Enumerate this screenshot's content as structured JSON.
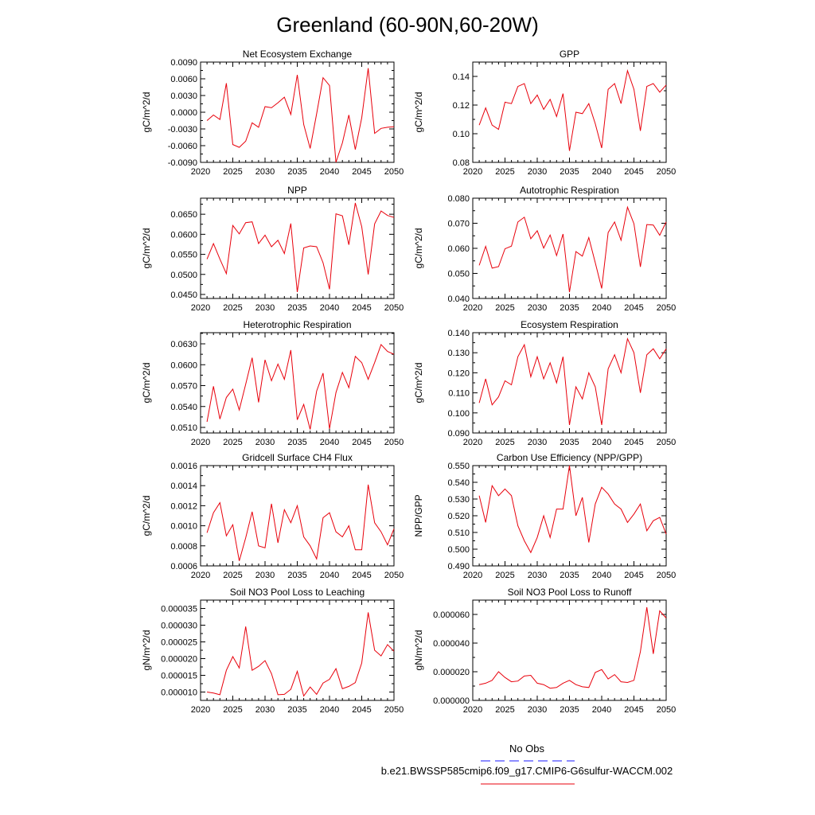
{
  "title": "Greenland (60-90N,60-20W)",
  "colors": {
    "series": "#e8000b",
    "obs": "#1a1aff",
    "axis": "#000000"
  },
  "legend": {
    "obs_label": "No Obs",
    "model_label": "b.e21.BWSSP585cmip6.f09_g17.CMIP6-G6sulfur-WACCM.002"
  },
  "chart_data": [
    {
      "type": "line",
      "title": "Net Ecosystem Exchange",
      "ylabel": "gC/m^2/d",
      "xlim": [
        2020,
        2050
      ],
      "xticks": [
        2020,
        2025,
        2030,
        2035,
        2040,
        2045,
        2050
      ],
      "ylim": [
        -0.009,
        0.009
      ],
      "yticks": [
        -0.009,
        -0.006,
        -0.003,
        0.0,
        0.003,
        0.006,
        0.009
      ],
      "ytick_labels": [
        "-0.0090",
        "-0.0060",
        "-0.0030",
        "0.0000",
        "0.0030",
        "0.0060",
        "0.0090"
      ],
      "x": [
        2021,
        2022,
        2023,
        2024,
        2025,
        2026,
        2027,
        2028,
        2029,
        2030,
        2031,
        2032,
        2033,
        2034,
        2035,
        2036,
        2037,
        2038,
        2039,
        2040,
        2041,
        2042,
        2043,
        2044,
        2045,
        2046,
        2047,
        2048,
        2049,
        2050
      ],
      "y": [
        -0.0015,
        -0.0005,
        -0.0013,
        0.0052,
        -0.0058,
        -0.0063,
        -0.0052,
        -0.0019,
        -0.0027,
        0.001,
        0.0008,
        0.0017,
        0.0027,
        -0.0004,
        0.0067,
        -0.0022,
        -0.0065,
        -0.0003,
        0.0062,
        0.0048,
        -0.009,
        -0.0055,
        -0.0005,
        -0.0067,
        -0.001,
        0.0079,
        -0.0038,
        -0.0029,
        -0.0027,
        -0.0026
      ]
    },
    {
      "type": "line",
      "title": "GPP",
      "ylabel": "gC/m^2/d",
      "xlim": [
        2020,
        2050
      ],
      "xticks": [
        2020,
        2025,
        2030,
        2035,
        2040,
        2045,
        2050
      ],
      "ylim": [
        0.08,
        0.15
      ],
      "yticks": [
        0.08,
        0.1,
        0.12,
        0.14
      ],
      "ytick_labels": [
        "0.08",
        "0.10",
        "0.12",
        "0.14"
      ],
      "x": [
        2021,
        2022,
        2023,
        2024,
        2025,
        2026,
        2027,
        2028,
        2029,
        2030,
        2031,
        2032,
        2033,
        2034,
        2035,
        2036,
        2037,
        2038,
        2039,
        2040,
        2041,
        2042,
        2043,
        2044,
        2045,
        2046,
        2047,
        2048,
        2049,
        2050
      ],
      "y": [
        0.106,
        0.118,
        0.106,
        0.103,
        0.122,
        0.121,
        0.133,
        0.135,
        0.121,
        0.127,
        0.117,
        0.124,
        0.112,
        0.128,
        0.088,
        0.115,
        0.114,
        0.121,
        0.107,
        0.09,
        0.131,
        0.135,
        0.121,
        0.144,
        0.131,
        0.102,
        0.133,
        0.135,
        0.129,
        0.134
      ]
    },
    {
      "type": "line",
      "title": "NPP",
      "ylabel": "gC/m^2/d",
      "xlim": [
        2020,
        2050
      ],
      "xticks": [
        2020,
        2025,
        2030,
        2035,
        2040,
        2045,
        2050
      ],
      "ylim": [
        0.044,
        0.069
      ],
      "yticks": [
        0.045,
        0.05,
        0.055,
        0.06,
        0.065
      ],
      "ytick_labels": [
        "0.0450",
        "0.0500",
        "0.0550",
        "0.0600",
        "0.0650"
      ],
      "x": [
        2021,
        2022,
        2023,
        2024,
        2025,
        2026,
        2027,
        2028,
        2029,
        2030,
        2031,
        2032,
        2033,
        2034,
        2035,
        2036,
        2037,
        2038,
        2039,
        2040,
        2041,
        2042,
        2043,
        2044,
        2045,
        2046,
        2047,
        2048,
        2049,
        2050
      ],
      "y": [
        0.0538,
        0.0577,
        0.0538,
        0.0502,
        0.0622,
        0.0601,
        0.0629,
        0.0631,
        0.0577,
        0.0598,
        0.0569,
        0.0585,
        0.0552,
        0.0627,
        0.0456,
        0.0566,
        0.0571,
        0.0569,
        0.0529,
        0.0463,
        0.0651,
        0.0646,
        0.0574,
        0.0678,
        0.0619,
        0.05,
        0.0626,
        0.0658,
        0.0647,
        0.0642
      ]
    },
    {
      "type": "line",
      "title": "Autotrophic Respiration",
      "ylabel": "gC/m^2/d",
      "xlim": [
        2020,
        2050
      ],
      "xticks": [
        2020,
        2025,
        2030,
        2035,
        2040,
        2045,
        2050
      ],
      "ylim": [
        0.04,
        0.08
      ],
      "yticks": [
        0.04,
        0.05,
        0.06,
        0.07,
        0.08
      ],
      "ytick_labels": [
        "0.040",
        "0.050",
        "0.060",
        "0.070",
        "0.080"
      ],
      "x": [
        2021,
        2022,
        2023,
        2024,
        2025,
        2026,
        2027,
        2028,
        2029,
        2030,
        2031,
        2032,
        2033,
        2034,
        2035,
        2036,
        2037,
        2038,
        2039,
        2040,
        2041,
        2042,
        2043,
        2044,
        2045,
        2046,
        2047,
        2048,
        2049,
        2050
      ],
      "y": [
        0.0532,
        0.0608,
        0.0521,
        0.0527,
        0.0598,
        0.0609,
        0.0705,
        0.0724,
        0.0638,
        0.067,
        0.0601,
        0.0653,
        0.0571,
        0.0657,
        0.0425,
        0.0587,
        0.0569,
        0.0643,
        0.0543,
        0.044,
        0.0663,
        0.0705,
        0.0632,
        0.0764,
        0.0698,
        0.0526,
        0.0695,
        0.0693,
        0.0652,
        0.0705
      ]
    },
    {
      "type": "line",
      "title": "Heterotrophic Respiration",
      "ylabel": "gC/m^2/d",
      "xlim": [
        2020,
        2050
      ],
      "xticks": [
        2020,
        2025,
        2030,
        2035,
        2040,
        2045,
        2050
      ],
      "ylim": [
        0.0502,
        0.0646
      ],
      "yticks": [
        0.051,
        0.054,
        0.057,
        0.06,
        0.063
      ],
      "ytick_labels": [
        "0.0510",
        "0.0540",
        "0.0570",
        "0.0600",
        "0.0630"
      ],
      "x": [
        2021,
        2022,
        2023,
        2024,
        2025,
        2026,
        2027,
        2028,
        2029,
        2030,
        2031,
        2032,
        2033,
        2034,
        2035,
        2036,
        2037,
        2038,
        2039,
        2040,
        2041,
        2042,
        2043,
        2044,
        2045,
        2046,
        2047,
        2048,
        2049,
        2050
      ],
      "y": [
        0.0518,
        0.0569,
        0.0522,
        0.0553,
        0.0565,
        0.0535,
        0.0572,
        0.061,
        0.0546,
        0.0607,
        0.0577,
        0.0601,
        0.0579,
        0.0621,
        0.0521,
        0.0543,
        0.0507,
        0.0562,
        0.0588,
        0.0508,
        0.056,
        0.0589,
        0.0567,
        0.0612,
        0.0603,
        0.0579,
        0.0603,
        0.0629,
        0.0619,
        0.0615
      ]
    },
    {
      "type": "line",
      "title": "Ecosystem Respiration",
      "ylabel": "gC/m^2/d",
      "xlim": [
        2020,
        2050
      ],
      "xticks": [
        2020,
        2025,
        2030,
        2035,
        2040,
        2045,
        2050
      ],
      "ylim": [
        0.09,
        0.14
      ],
      "yticks": [
        0.09,
        0.1,
        0.11,
        0.12,
        0.13,
        0.14
      ],
      "ytick_labels": [
        "0.090",
        "0.100",
        "0.110",
        "0.120",
        "0.130",
        "0.140"
      ],
      "x": [
        2021,
        2022,
        2023,
        2024,
        2025,
        2026,
        2027,
        2028,
        2029,
        2030,
        2031,
        2032,
        2033,
        2034,
        2035,
        2036,
        2037,
        2038,
        2039,
        2040,
        2041,
        2042,
        2043,
        2044,
        2045,
        2046,
        2047,
        2048,
        2049,
        2050
      ],
      "y": [
        0.105,
        0.117,
        0.104,
        0.108,
        0.116,
        0.114,
        0.128,
        0.134,
        0.118,
        0.128,
        0.117,
        0.125,
        0.115,
        0.128,
        0.094,
        0.113,
        0.107,
        0.12,
        0.113,
        0.094,
        0.122,
        0.129,
        0.12,
        0.137,
        0.13,
        0.11,
        0.129,
        0.132,
        0.127,
        0.132
      ]
    },
    {
      "type": "line",
      "title": "Gridcell Surface CH4 Flux",
      "ylabel": "gC/m^2/d",
      "xlim": [
        2020,
        2050
      ],
      "xticks": [
        2020,
        2025,
        2030,
        2035,
        2040,
        2045,
        2050
      ],
      "ylim": [
        0.0006,
        0.0016
      ],
      "yticks": [
        0.0006,
        0.0008,
        0.001,
        0.0012,
        0.0014,
        0.0016
      ],
      "ytick_labels": [
        "0.0006",
        "0.0008",
        "0.0010",
        "0.0012",
        "0.0014",
        "0.0016"
      ],
      "x": [
        2021,
        2022,
        2023,
        2024,
        2025,
        2026,
        2027,
        2028,
        2029,
        2030,
        2031,
        2032,
        2033,
        2034,
        2035,
        2036,
        2037,
        2038,
        2039,
        2040,
        2041,
        2042,
        2043,
        2044,
        2045,
        2046,
        2047,
        2048,
        2049,
        2050
      ],
      "y": [
        0.00093,
        0.00113,
        0.00123,
        0.0009,
        0.00101,
        0.00065,
        0.00088,
        0.00114,
        0.0008,
        0.00078,
        0.00122,
        0.00083,
        0.00116,
        0.00103,
        0.0012,
        0.00089,
        0.0008,
        0.00067,
        0.00108,
        0.00113,
        0.00094,
        0.00089,
        0.001,
        0.00076,
        0.00076,
        0.00141,
        0.00103,
        0.00094,
        0.00081,
        0.00097
      ]
    },
    {
      "type": "line",
      "title": "Carbon Use Efficiency (NPP/GPP)",
      "ylabel": "NPP/GPP",
      "xlim": [
        2020,
        2050
      ],
      "xticks": [
        2020,
        2025,
        2030,
        2035,
        2040,
        2045,
        2050
      ],
      "ylim": [
        0.49,
        0.55
      ],
      "yticks": [
        0.49,
        0.5,
        0.51,
        0.52,
        0.53,
        0.54,
        0.55
      ],
      "ytick_labels": [
        "0.490",
        "0.500",
        "0.510",
        "0.520",
        "0.530",
        "0.540",
        "0.550"
      ],
      "x": [
        2021,
        2022,
        2023,
        2024,
        2025,
        2026,
        2027,
        2028,
        2029,
        2030,
        2031,
        2032,
        2033,
        2034,
        2035,
        2036,
        2037,
        2038,
        2039,
        2040,
        2041,
        2042,
        2043,
        2044,
        2045,
        2046,
        2047,
        2048,
        2049,
        2050
      ],
      "y": [
        0.532,
        0.516,
        0.538,
        0.532,
        0.536,
        0.532,
        0.514,
        0.505,
        0.498,
        0.507,
        0.52,
        0.507,
        0.524,
        0.524,
        0.55,
        0.52,
        0.531,
        0.504,
        0.527,
        0.537,
        0.533,
        0.527,
        0.524,
        0.516,
        0.521,
        0.527,
        0.511,
        0.517,
        0.519,
        0.509
      ]
    },
    {
      "type": "line",
      "title": "Soil NO3 Pool Loss to Leaching",
      "ylabel": "gN/m^2/d",
      "xlim": [
        2020,
        2050
      ],
      "xticks": [
        2020,
        2025,
        2030,
        2035,
        2040,
        2045,
        2050
      ],
      "ylim": [
        7.5e-06,
        3.75e-05
      ],
      "yticks": [
        1e-05,
        1.5e-05,
        2e-05,
        2.5e-05,
        3e-05,
        3.5e-05
      ],
      "ytick_labels": [
        "0.000010",
        "0.000015",
        "0.000020",
        "0.000025",
        "0.000030",
        "0.000035"
      ],
      "x": [
        2021,
        2022,
        2023,
        2024,
        2025,
        2026,
        2027,
        2028,
        2029,
        2030,
        2031,
        2032,
        2033,
        2034,
        2035,
        2036,
        2037,
        2038,
        2039,
        2040,
        2041,
        2042,
        2043,
        2044,
        2045,
        2046,
        2047,
        2048,
        2049,
        2050
      ],
      "y": [
        1e-05,
        9.7e-06,
        9.2e-06,
        1.65e-05,
        2.06e-05,
        1.72e-05,
        2.96e-05,
        1.65e-05,
        1.77e-05,
        1.94e-05,
        1.55e-05,
        9.2e-06,
        9.3e-06,
        1.08e-05,
        1.62e-05,
        8.8e-06,
        1.15e-05,
        9.3e-06,
        1.27e-05,
        1.38e-05,
        1.7e-05,
        1.1e-05,
        1.17e-05,
        1.28e-05,
        1.87e-05,
        3.38e-05,
        2.25e-05,
        2.08e-05,
        2.42e-05,
        2.22e-05
      ]
    },
    {
      "type": "line",
      "title": "Soil NO3 Pool Loss to Runoff",
      "ylabel": "gN/m^2/d",
      "xlim": [
        2020,
        2050
      ],
      "xticks": [
        2020,
        2025,
        2030,
        2035,
        2040,
        2045,
        2050
      ],
      "ylim": [
        0.0,
        7e-05
      ],
      "yticks": [
        0.0,
        2e-05,
        4e-05,
        6e-05
      ],
      "ytick_labels": [
        "0.000000",
        "0.000020",
        "0.000040",
        "0.000060"
      ],
      "x": [
        2021,
        2022,
        2023,
        2024,
        2025,
        2026,
        2027,
        2028,
        2029,
        2030,
        2031,
        2032,
        2033,
        2034,
        2035,
        2036,
        2037,
        2038,
        2039,
        2040,
        2041,
        2042,
        2043,
        2044,
        2045,
        2046,
        2047,
        2048,
        2049,
        2050
      ],
      "y": [
        1.1e-05,
        1.2e-05,
        1.4e-05,
        2e-05,
        1.6e-05,
        1.3e-05,
        1.35e-05,
        1.7e-05,
        1.75e-05,
        1.2e-05,
        1.1e-05,
        8.5e-06,
        9e-06,
        1.2e-05,
        1.4e-05,
        1.1e-05,
        9.5e-06,
        9e-06,
        1.95e-05,
        2.15e-05,
        1.5e-05,
        1.8e-05,
        1.3e-05,
        1.25e-05,
        1.4e-05,
        3.4e-05,
        6.5e-05,
        3.25e-05,
        6.25e-05,
        5.75e-05
      ]
    }
  ]
}
